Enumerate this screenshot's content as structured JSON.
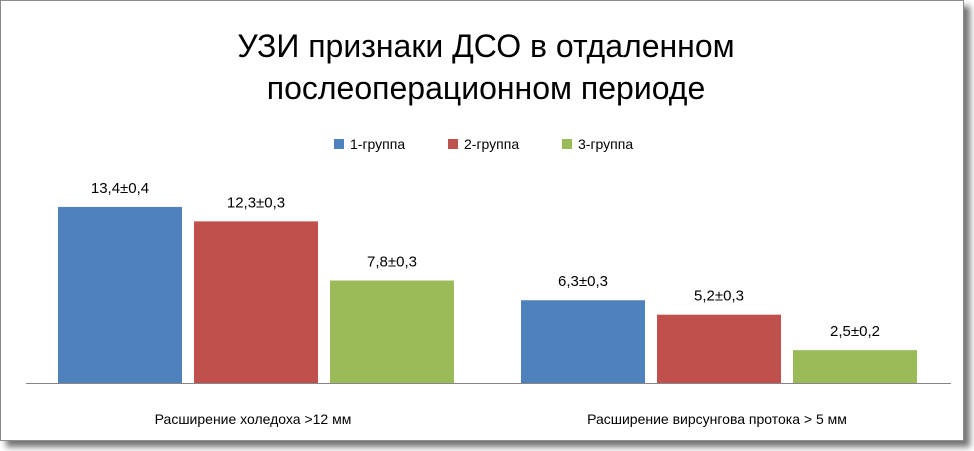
{
  "chart_data": {
    "type": "bar",
    "title_lines": [
      "УЗИ признаки ДСО в отдаленном",
      "послеоперационном периоде"
    ],
    "categories": [
      "Расширение холедоха >12 мм",
      "Расширение вирсунгова протока > 5 мм"
    ],
    "series": [
      {
        "name": "1-группа",
        "color": "#4f81bd",
        "values": [
          13.4,
          6.3
        ],
        "labels": [
          "13,4±0,4",
          "6,3±0,3"
        ]
      },
      {
        "name": "2-группа",
        "color": "#c0504d",
        "values": [
          12.3,
          5.2
        ],
        "labels": [
          "12,3±0,3",
          "5,2±0,3"
        ]
      },
      {
        "name": "3-группа",
        "color": "#9bbb59",
        "values": [
          7.8,
          2.5
        ],
        "labels": [
          "7,8±0,3",
          "2,5±0,2"
        ]
      }
    ],
    "ylim": [
      0,
      15
    ],
    "legend_position": "top",
    "grid": false,
    "axis_color": "#868686"
  }
}
